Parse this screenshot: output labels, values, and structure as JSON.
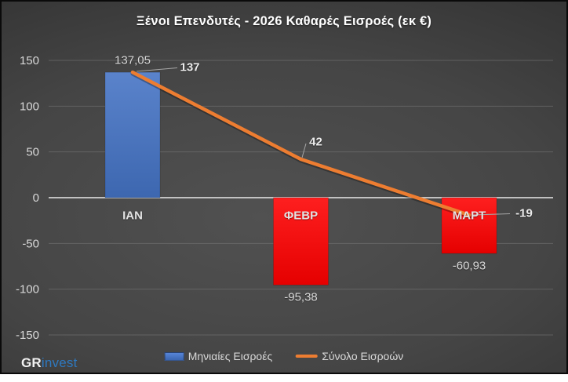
{
  "title": "Ξένοι Επενδυτές - 2026 Καθαρές Εισροές (εκ €)",
  "chart_data": {
    "type": "combo (bar + line)",
    "categories": [
      "ΙΑΝ",
      "ΦΕΒΡ",
      "ΜΑΡΤ"
    ],
    "series": [
      {
        "name": "Μηνιαίες Εισροές",
        "type": "bar",
        "values": [
          137.05,
          -95.38,
          -60.93
        ],
        "value_labels": [
          "137,05",
          "-95,38",
          "-60,93"
        ],
        "bar_colors": [
          "#4472c4",
          "#fe0000",
          "#fe0000"
        ]
      },
      {
        "name": "Σύνολο Εισροών",
        "type": "line",
        "values": [
          137,
          42,
          -19
        ],
        "value_labels": [
          "137",
          "42",
          "-19"
        ],
        "color": "#ed7d31"
      }
    ],
    "y_axis": {
      "ticks": [
        150,
        100,
        50,
        0,
        -50,
        -100,
        -150
      ],
      "min": -150,
      "max": 150
    },
    "grid": true,
    "legend_position": "bottom-center"
  },
  "legend": {
    "items": [
      {
        "label": "Μηνιαίες Εισροές"
      },
      {
        "label": "Σύνολο Εισροών"
      }
    ]
  },
  "logo": {
    "gr": "GR",
    "invest": "invest"
  },
  "colors": {
    "background_center": "#515151",
    "background_edge": "#262626",
    "gridline": "#7a7a7a",
    "zero_axis": "#e9e9e9",
    "text": "#d9d9d9",
    "bar_blue": "#4472c4",
    "bar_red": "#fe0000",
    "line_orange": "#ed7d31",
    "leader_line": "#a6a6a6",
    "logo_blue": "#2e79c0"
  }
}
